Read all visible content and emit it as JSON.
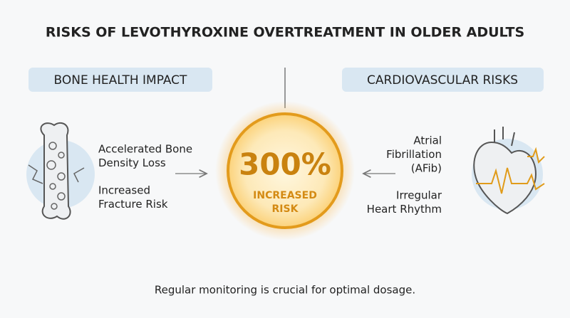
{
  "title": "RISKS OF LEVOTHYROXINE OVERTREATMENT IN OLDER ADULTS",
  "left": {
    "heading": "BONE HEALTH IMPACT",
    "items": [
      [
        "Accelerated Bone",
        "Density Loss"
      ],
      [
        "Increased",
        "Fracture Risk"
      ]
    ]
  },
  "right": {
    "heading": "CARDIOVASCULAR RISKS",
    "items": [
      [
        "Atrial",
        "Fibrillation",
        "(AFib)"
      ],
      [
        "Irregular",
        "Heart Rhythm"
      ]
    ]
  },
  "center": {
    "value": "300%",
    "label": [
      "INCREASED",
      "RISK"
    ]
  },
  "footer": "Regular monitoring is crucial for optimal dosage."
}
